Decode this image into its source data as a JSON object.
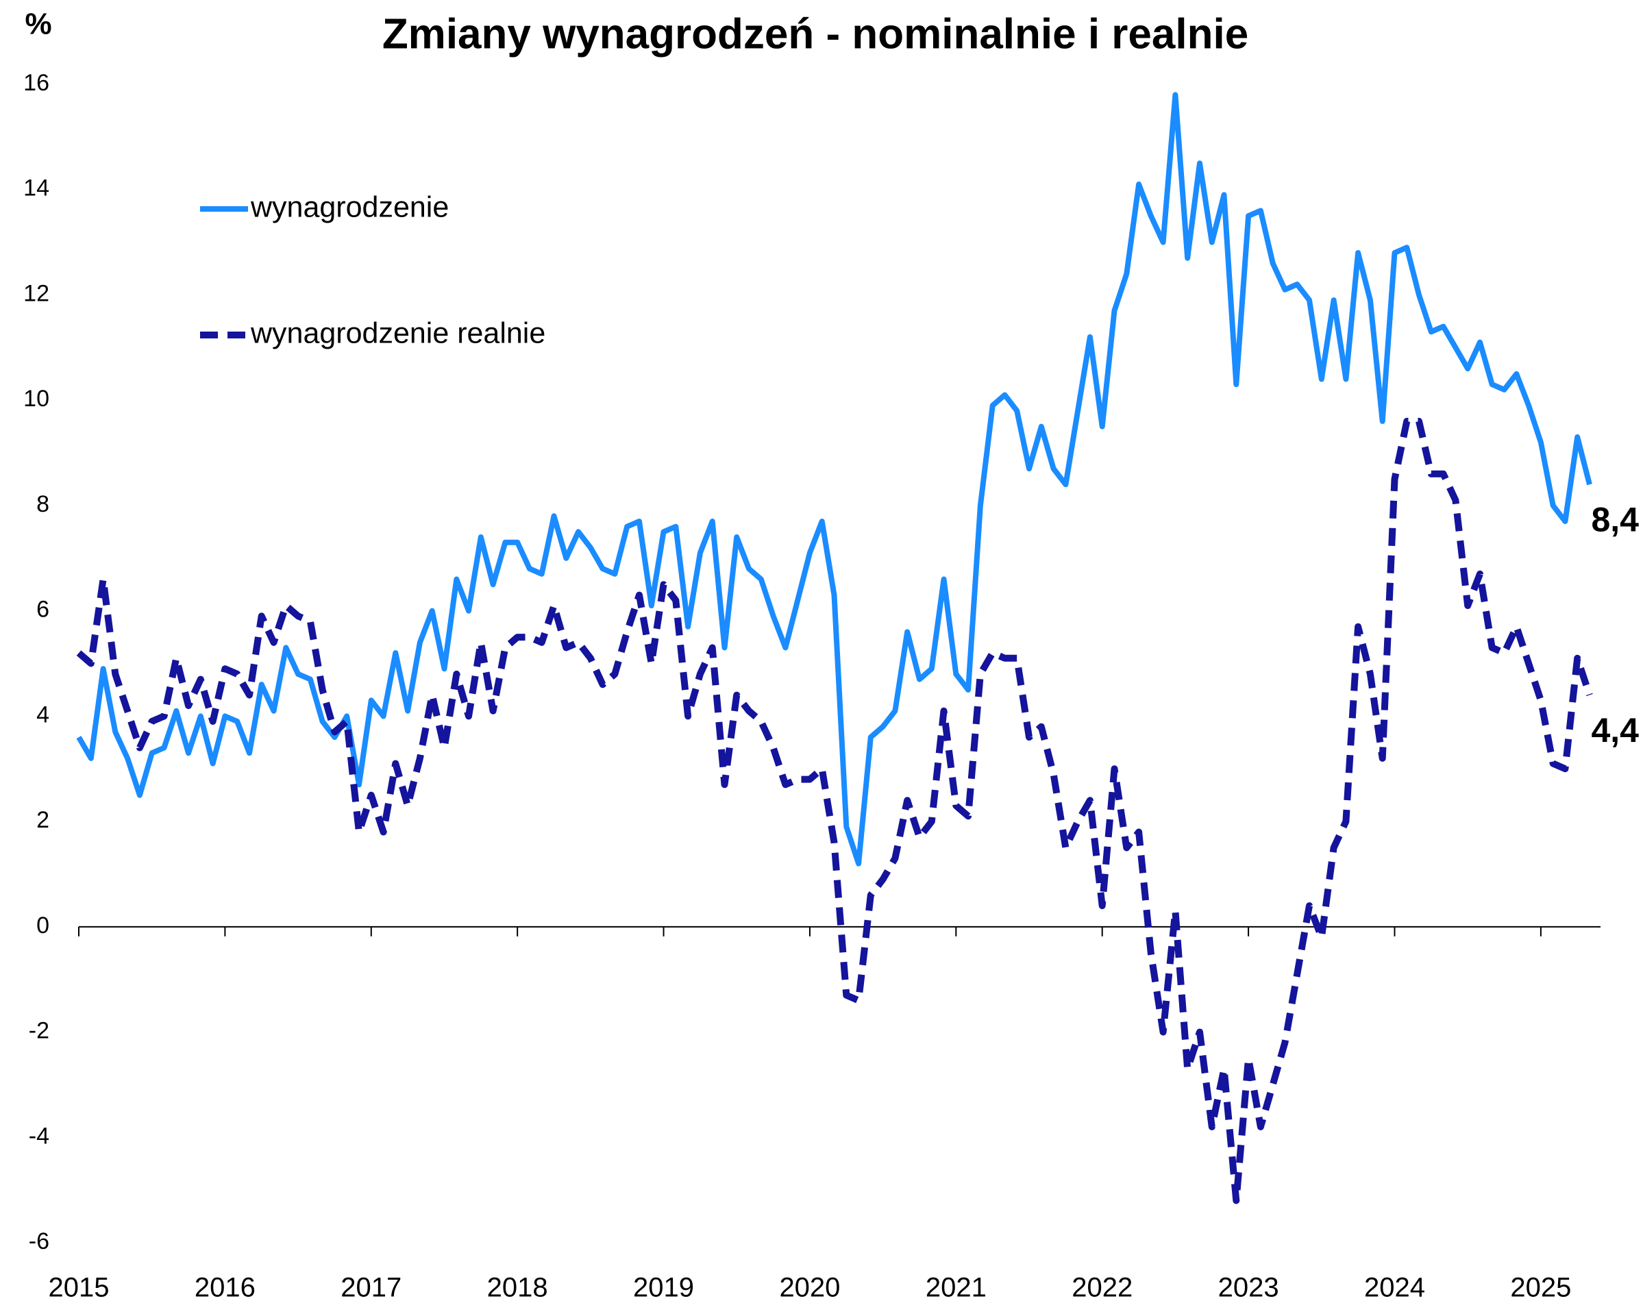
{
  "chart_data": {
    "type": "line",
    "title": "Zmiany wynagrodzeń - nominalnie i realnie",
    "y_label": "%",
    "categories": [
      "2015",
      null,
      null,
      null,
      null,
      null,
      null,
      null,
      null,
      null,
      null,
      null,
      "2016",
      null,
      null,
      null,
      null,
      null,
      null,
      null,
      null,
      null,
      null,
      null,
      "2017",
      null,
      null,
      null,
      null,
      null,
      null,
      null,
      null,
      null,
      null,
      null,
      "2018",
      null,
      null,
      null,
      null,
      null,
      null,
      null,
      null,
      null,
      null,
      null,
      "2019",
      null,
      null,
      null,
      null,
      null,
      null,
      null,
      null,
      null,
      null,
      null,
      "2020",
      null,
      null,
      null,
      null,
      null,
      null,
      null,
      null,
      null,
      null,
      null,
      "2021",
      null,
      null,
      null,
      null,
      null,
      null,
      null,
      null,
      null,
      null,
      null,
      "2022",
      null,
      null,
      null,
      null,
      null,
      null,
      null,
      null,
      null,
      null,
      null,
      "2023",
      null,
      null,
      null,
      null,
      null,
      null,
      null,
      null,
      null,
      null,
      null,
      "2024",
      null,
      null,
      null,
      null,
      null,
      null,
      null,
      null,
      null,
      null,
      null,
      "2025",
      null,
      null,
      null,
      null
    ],
    "series": [
      {
        "name": "wynagrodzenie",
        "color": "#1a8cff",
        "dashed": false,
        "end_label": "8,4",
        "values": [
          3.6,
          3.2,
          4.9,
          3.7,
          3.2,
          2.5,
          3.3,
          3.4,
          4.1,
          3.3,
          4.0,
          3.1,
          4.0,
          3.9,
          3.3,
          4.6,
          4.1,
          5.3,
          4.8,
          4.7,
          3.9,
          3.6,
          4.0,
          2.7,
          4.3,
          4.0,
          5.2,
          4.1,
          5.4,
          6.0,
          4.9,
          6.6,
          6.0,
          7.4,
          6.5,
          7.3,
          7.3,
          6.8,
          6.7,
          7.8,
          7.0,
          7.5,
          7.2,
          6.8,
          6.7,
          7.6,
          7.7,
          6.1,
          7.5,
          7.6,
          5.7,
          7.1,
          7.7,
          5.3,
          7.4,
          6.8,
          6.6,
          5.9,
          5.3,
          6.2,
          7.1,
          7.7,
          6.3,
          1.9,
          1.2,
          3.6,
          3.8,
          4.1,
          5.6,
          4.7,
          4.9,
          6.6,
          4.8,
          4.5,
          8.0,
          9.9,
          10.1,
          9.8,
          8.7,
          9.5,
          8.7,
          8.4,
          9.8,
          11.2,
          9.5,
          11.7,
          12.4,
          14.1,
          13.5,
          13.0,
          15.8,
          12.7,
          14.5,
          13.0,
          13.9,
          10.3,
          13.5,
          13.6,
          12.6,
          12.1,
          12.2,
          11.9,
          10.4,
          11.9,
          10.4,
          12.8,
          11.9,
          9.6,
          12.8,
          12.9,
          12.0,
          11.3,
          11.4,
          11.0,
          10.6,
          11.1,
          10.3,
          10.2,
          10.5,
          9.9,
          9.2,
          8.0,
          7.7,
          9.3,
          8.4
        ]
      },
      {
        "name": "wynagrodzenie realnie",
        "color": "#14149c",
        "dashed": true,
        "end_label": "4,4",
        "values": [
          5.2,
          5.0,
          6.6,
          4.8,
          4.1,
          3.4,
          3.9,
          4.0,
          5.1,
          4.2,
          4.7,
          3.9,
          4.9,
          4.8,
          4.4,
          5.9,
          5.4,
          6.1,
          5.9,
          5.8,
          4.5,
          3.7,
          3.9,
          1.8,
          2.5,
          1.8,
          3.1,
          2.3,
          3.2,
          4.4,
          3.4,
          4.8,
          4.0,
          5.4,
          4.1,
          5.3,
          5.5,
          5.5,
          5.4,
          6.1,
          5.3,
          5.4,
          5.1,
          4.6,
          4.8,
          5.6,
          6.3,
          5.0,
          6.5,
          6.2,
          4.0,
          4.8,
          5.3,
          2.7,
          4.4,
          4.1,
          3.9,
          3.4,
          2.7,
          2.8,
          2.8,
          3.0,
          1.6,
          -1.3,
          -1.4,
          0.6,
          0.9,
          1.3,
          2.4,
          1.7,
          2.0,
          4.1,
          2.3,
          2.1,
          4.8,
          5.2,
          5.1,
          5.1,
          3.6,
          3.8,
          2.9,
          1.5,
          2.0,
          2.4,
          0.4,
          3.0,
          1.5,
          1.8,
          -0.5,
          -2.0,
          0.3,
          -2.7,
          -2.0,
          -3.8,
          -2.7,
          -5.2,
          -2.5,
          -3.8,
          -3.0,
          -2.2,
          -0.9,
          0.4,
          -0.2,
          1.5,
          2.0,
          5.7,
          4.8,
          3.2,
          8.5,
          9.6,
          9.6,
          8.6,
          8.6,
          8.1,
          6.1,
          6.7,
          5.3,
          5.2,
          5.7,
          5.0,
          4.3,
          3.1,
          3.0,
          5.1,
          4.4
        ]
      }
    ],
    "ylim": [
      -6,
      16
    ],
    "yticks": [
      -6,
      -4,
      -2,
      0,
      2,
      4,
      6,
      8,
      10,
      12,
      14,
      16
    ],
    "grid": false,
    "legend": "upper left"
  }
}
